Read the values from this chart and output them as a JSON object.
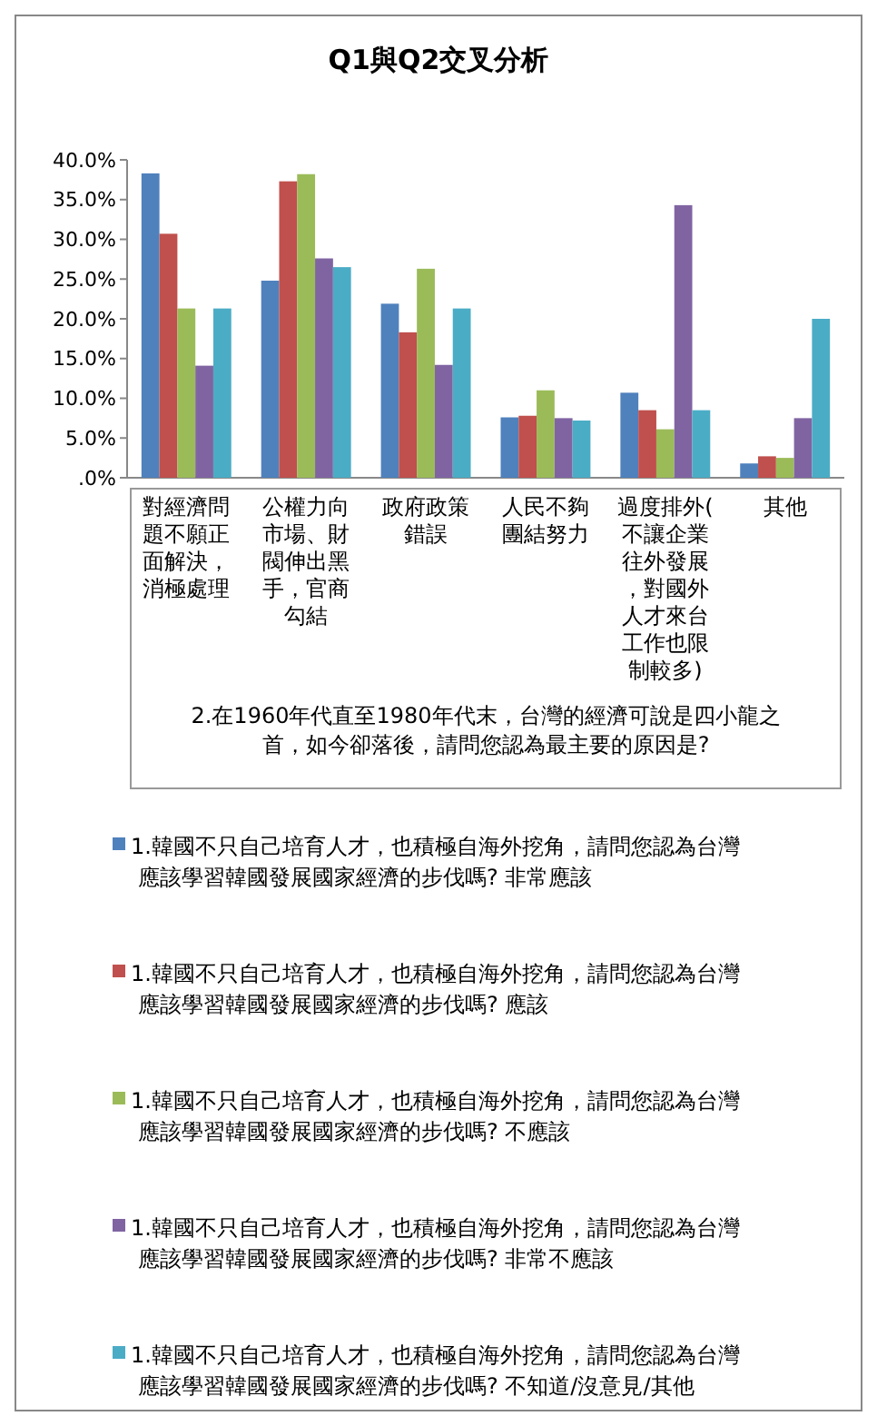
{
  "chart_data": {
    "type": "bar",
    "title": "Q1與Q2交叉分析",
    "xlabel": "2.在1960年代直至1980年代末，台灣的經濟可說是四小龍之首，如今卻落後，請問您認為最主要的原因是?",
    "categories": [
      "對經濟問題不願正面解決，消極處理",
      "公權力向市場、財閥伸出黑手，官商勾結",
      "政府政策錯誤",
      "人民不夠團結努力",
      "過度排外(不讓企業往外發展，對國外人才來台工作也限制較多)",
      "其他"
    ],
    "series": [
      {
        "name": "1.韓國不只自己培育人才，也積極自海外挖角，請問您認為台灣應該學習韓國發展國家經濟的步伐嗎? 非常應該",
        "color": "#4f81bd",
        "values": [
          38.3,
          24.8,
          21.9,
          7.6,
          10.7,
          1.8
        ]
      },
      {
        "name": "1.韓國不只自己培育人才，也積極自海外挖角，請問您認為台灣應該學習韓國發展國家經濟的步伐嗎? 應該",
        "color": "#c0504d",
        "values": [
          30.7,
          37.3,
          18.3,
          7.8,
          8.5,
          2.7
        ]
      },
      {
        "name": "1.韓國不只自己培育人才，也積極自海外挖角，請問您認為台灣應該學習韓國發展國家經濟的步伐嗎? 不應該",
        "color": "#9bbb59",
        "values": [
          21.3,
          38.2,
          26.3,
          11,
          6.1,
          2.5
        ]
      },
      {
        "name": "1.韓國不只自己培育人才，也積極自海外挖角，請問您認為台灣應該學習韓國發展國家經濟的步伐嗎? 非常不應該",
        "color": "#8064a2",
        "values": [
          14.1,
          27.6,
          14.2,
          7.5,
          34.3,
          7.5
        ]
      },
      {
        "name": "1.韓國不只自己培育人才，也積極自海外挖角，請問您認為台灣應該學習韓國發展國家經濟的步伐嗎? 不知道/沒意見/其他",
        "color": "#4bacc6",
        "values": [
          21.3,
          26.5,
          21.3,
          7.2,
          8.5,
          20
        ]
      }
    ],
    "ylim": [
      0,
      40
    ],
    "yticks": [
      {
        "value": 0,
        "label": ".0%"
      },
      {
        "value": 5,
        "label": "5.0%"
      },
      {
        "value": 10,
        "label": "10.0%"
      },
      {
        "value": 15,
        "label": "15.0%"
      },
      {
        "value": 20,
        "label": "20.0%"
      },
      {
        "value": 25,
        "label": "25.0%"
      },
      {
        "value": 30,
        "label": "30.0%"
      },
      {
        "value": 35,
        "label": "35.0%"
      },
      {
        "value": 40,
        "label": "40.0%"
      }
    ],
    "legend": "bottom"
  }
}
